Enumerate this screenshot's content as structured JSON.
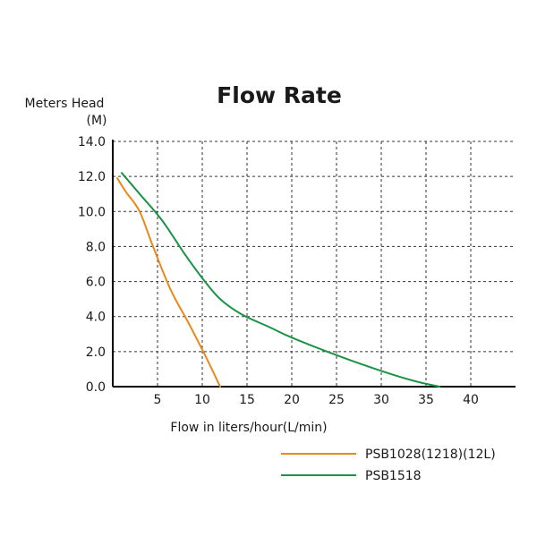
{
  "chart_data": {
    "type": "line",
    "title": "Flow Rate",
    "ylabel_line1": "Meters Head",
    "ylabel_line2": "(M)",
    "xlabel": "Flow in liters/hour(L/min)",
    "xlim": [
      0,
      45
    ],
    "ylim": [
      0,
      14
    ],
    "x_ticks": [
      5,
      10,
      15,
      20,
      25,
      30,
      35,
      40
    ],
    "x_tick_labels": [
      "5",
      "10",
      "15",
      "20",
      "25",
      "30",
      "35",
      "40"
    ],
    "y_ticks": [
      0,
      2,
      4,
      6,
      8,
      10,
      12,
      14
    ],
    "y_tick_labels": [
      "0.0",
      "2.0",
      "4.0",
      "6.0",
      "8.0",
      "10.0",
      "12.0",
      "14.0"
    ],
    "grid": true,
    "legend_position": "bottom-right",
    "series": [
      {
        "name": "PSB1028(1218)(12L)",
        "color": "#e88a1a",
        "points": [
          [
            0.5,
            11.9
          ],
          [
            1.5,
            11.1
          ],
          [
            3.0,
            10.0
          ],
          [
            4.5,
            8.0
          ],
          [
            6.5,
            5.5
          ],
          [
            8.5,
            3.6
          ],
          [
            10.5,
            1.6
          ],
          [
            12.0,
            0.0
          ]
        ]
      },
      {
        "name": "PSB1518",
        "color": "#1a9444",
        "points": [
          [
            1.0,
            12.2
          ],
          [
            3.0,
            11.0
          ],
          [
            5.5,
            9.5
          ],
          [
            8.0,
            7.6
          ],
          [
            10.0,
            6.2
          ],
          [
            12.0,
            5.0
          ],
          [
            14.5,
            4.1
          ],
          [
            17.5,
            3.4
          ],
          [
            20.0,
            2.8
          ],
          [
            25.0,
            1.8
          ],
          [
            30.0,
            0.9
          ],
          [
            33.5,
            0.35
          ],
          [
            36.5,
            0.0
          ]
        ]
      }
    ]
  }
}
